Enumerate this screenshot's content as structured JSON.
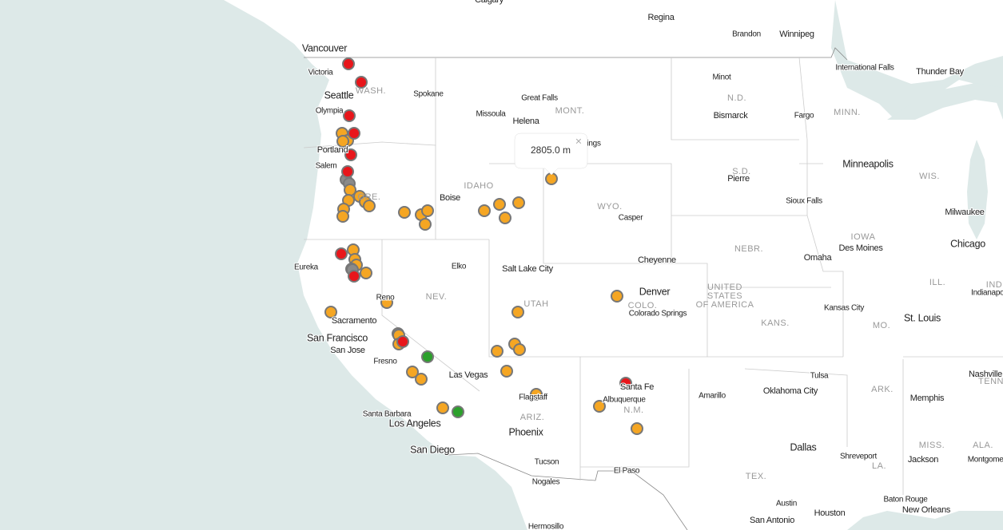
{
  "popup": {
    "text": "2805.0 m",
    "close": "×"
  },
  "labels": [
    "Calgary",
    "Regina",
    "Brandon",
    "Winnipeg",
    "Vancouver",
    "Victoria",
    "Seattle",
    "Spokane",
    "Olympia",
    "Portland",
    "Salem",
    "Great Falls",
    "Missoula",
    "Helena",
    "Billings",
    "Minot",
    "Bismarck",
    "Fargo",
    "International Falls",
    "Thunder Bay",
    "Minneapolis",
    "Pierre",
    "Sioux Falls",
    "Milwaukee",
    "Chicago",
    "Boise",
    "Casper",
    "Cheyenne",
    "Omaha",
    "Des Moines",
    "Eureka",
    "Elko",
    "Salt Lake City",
    "Denver",
    "Colorado Springs",
    "Kansas City",
    "St. Louis",
    "Indianapolis",
    "Reno",
    "Sacramento",
    "San Francisco",
    "San Jose",
    "Fresno",
    "Las Vegas",
    "Nashville",
    "Tulsa",
    "Oklahoma City",
    "Memphis",
    "Santa Fe",
    "Albuquerque",
    "Amarillo",
    "Flagstaff",
    "Santa Barbara",
    "Los Angeles",
    "Phoenix",
    "Dallas",
    "Shreveport",
    "Jackson",
    "Montgomery",
    "San Diego",
    "Tucson",
    "El Paso",
    "Nogales",
    "Baton Rouge",
    "New Orleans",
    "Austin",
    "Houston",
    "San Antonio",
    "Hermosillo",
    "WASH.",
    "MONT.",
    "N.D.",
    "MINN.",
    "WIS.",
    "S.D.",
    "IDAHO",
    "WYO.",
    "ORE.",
    "IOWA",
    "NEBR.",
    "NEV.",
    "UTAH",
    "COLO.",
    "ILL.",
    "IND",
    "KANS.",
    "MO.",
    "ARK.",
    "TENN",
    "ARIZ.",
    "N.M.",
    "TEX.",
    "LA.",
    "MISS.",
    "ALA.",
    "UNITED",
    "STATES",
    "OF AMERICA"
  ]
}
